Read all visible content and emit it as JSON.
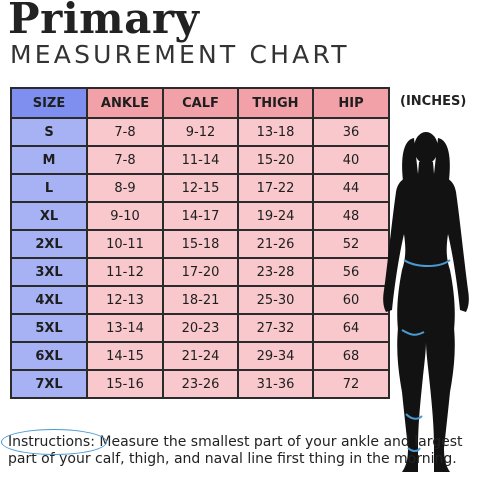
{
  "title": "Primary",
  "subtitle": "MEASUREMENT CHART",
  "units": "(INCHES)",
  "table": {
    "headers": [
      "SIZE",
      "ANKLE",
      "CALF",
      "THIGH",
      "HIP"
    ],
    "rows": [
      {
        "size": "S",
        "ankle": "7-8",
        "calf": "9-12",
        "thigh": "13-18",
        "hip": "36"
      },
      {
        "size": "M",
        "ankle": "7-8",
        "calf": "11-14",
        "thigh": "15-20",
        "hip": "40"
      },
      {
        "size": "L",
        "ankle": "8-9",
        "calf": "12-15",
        "thigh": "17-22",
        "hip": "44"
      },
      {
        "size": "XL",
        "ankle": "9-10",
        "calf": "14-17",
        "thigh": "19-24",
        "hip": "48"
      },
      {
        "size": "2XL",
        "ankle": "10-11",
        "calf": "15-18",
        "thigh": "21-26",
        "hip": "52"
      },
      {
        "size": "3XL",
        "ankle": "11-12",
        "calf": "17-20",
        "thigh": "23-28",
        "hip": "56"
      },
      {
        "size": "4XL",
        "ankle": "12-13",
        "calf": "18-21",
        "thigh": "25-30",
        "hip": "60"
      },
      {
        "size": "5XL",
        "ankle": "13-14",
        "calf": "20-23",
        "thigh": "27-32",
        "hip": "64"
      },
      {
        "size": "6XL",
        "ankle": "14-15",
        "calf": "21-24",
        "thigh": "29-34",
        "hip": "68"
      },
      {
        "size": "7XL",
        "ankle": "15-16",
        "calf": "23-26",
        "thigh": "31-36",
        "hip": "72"
      }
    ]
  },
  "instructions": {
    "label": "Instructions",
    "text": ": Measure the smallest part of your ankle and largest part of your calf,  thigh, and naval line first thing in the morning."
  },
  "colors": {
    "size_header": "#7e8ff0",
    "size_cell": "#a6b2f4",
    "measure_header": "#f2a1a8",
    "measure_cell": "#f8c8cc",
    "measure_arrow": "#4a9ad4"
  },
  "figure": {
    "icon": "body-silhouette-icon"
  }
}
